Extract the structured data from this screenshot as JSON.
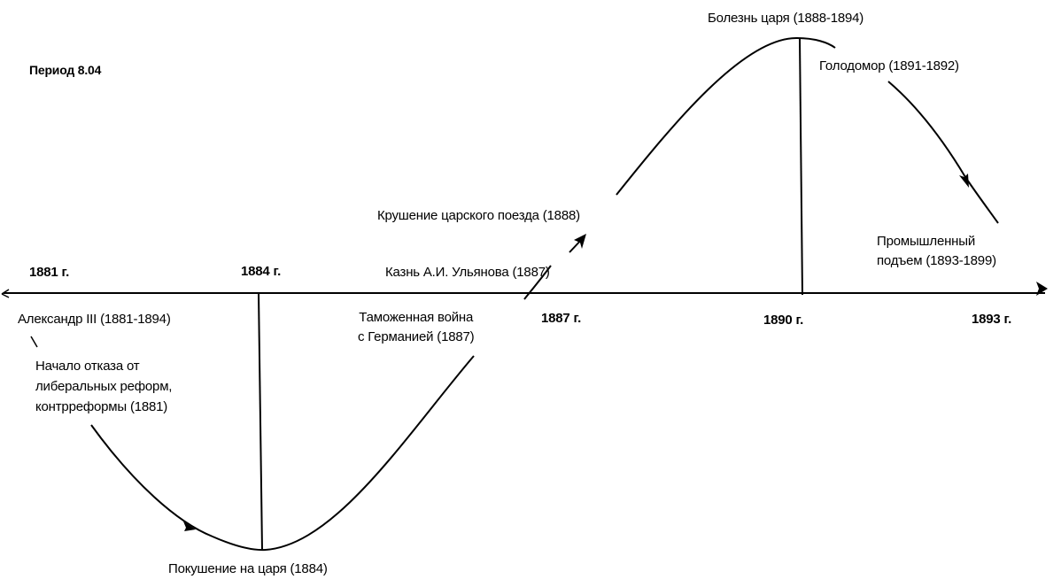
{
  "period_label": "Период 8.04",
  "years": {
    "y1881": "1881 г.",
    "y1884": "1884 г.",
    "y1887": "1887 г.",
    "y1890": "1890 г.",
    "y1893": "1893 г."
  },
  "events": {
    "alexander": "Александр III (1881-1894)",
    "counter_reforms": [
      "Начало отказа от",
      "либеральных реформ,",
      "контрреформы  (1881)"
    ],
    "assassination_attempt": "Покушение на царя (1884)",
    "customs_war": [
      "Таможенная война",
      "с Германией (1887)"
    ],
    "ulyanov_execution": "Казнь А.И. Ульянова (1887)",
    "train_crash": "Крушение царского поезда (1888)",
    "tsar_illness": "Болезнь царя (1888-1894)",
    "famine": "Голодомор (1891-1892)",
    "industrial_rise": [
      "Промышленный",
      "подъем (1893-1899)"
    ]
  },
  "colors": {
    "ink": "#000000",
    "background": "#ffffff"
  }
}
